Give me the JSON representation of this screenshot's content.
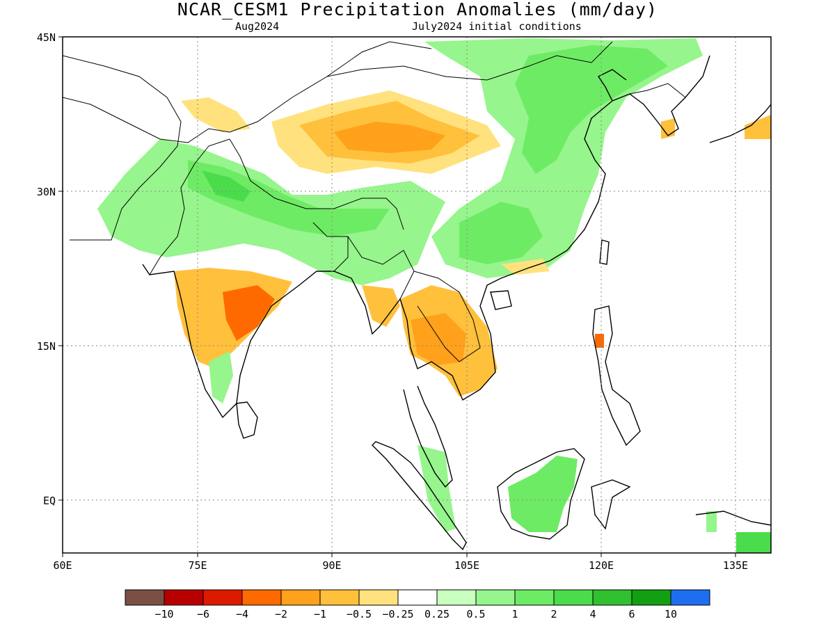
{
  "title": "NCAR_CESM1 Precipitation Anomalies (mm/day)",
  "subtitle_left": "Aug2024",
  "subtitle_right": "July2024 initial conditions",
  "lat_labels": [
    "45N",
    "30N",
    "15N",
    "EQ"
  ],
  "lon_labels": [
    "60E",
    "75E",
    "90E",
    "105E",
    "120E",
    "135E"
  ],
  "colorbar": {
    "labels": [
      "−10",
      "−6",
      "−4",
      "−2",
      "−1",
      "−0.5",
      "−0.25",
      "0.25",
      "0.5",
      "1",
      "2",
      "4",
      "6",
      "10"
    ],
    "colors": [
      "#7a5045",
      "#b80000",
      "#dc1a00",
      "#ff6a00",
      "#ffa11a",
      "#ffc03c",
      "#ffe27d",
      "#ffffff",
      "#c8ffbe",
      "#96f58c",
      "#6eeb64",
      "#4bdc4b",
      "#30c030",
      "#12a012",
      "#1e6ef0"
    ]
  },
  "legend_colors": {
    "dry_light": "#ffe27d",
    "dry_mid": "#ffc03c",
    "dry_strong": "#ffa11a",
    "dry_heavy": "#ff6a00",
    "wet_light": "#c8ffbe",
    "wet_mid": "#96f58c",
    "wet_strong": "#6eeb64",
    "wet_heavy": "#4bdc4b",
    "wet_max": "#30c030"
  }
}
